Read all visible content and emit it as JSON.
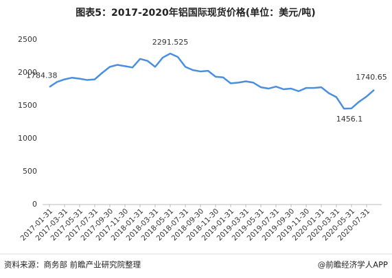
{
  "chart_data": {
    "type": "line",
    "title": "图表5：2017-2020年铝国际现货价格(单位：美元/吨)",
    "categories": [
      "2017-01-31",
      null,
      "2017-03-31",
      null,
      "2017-05-31",
      null,
      "2017-07-31",
      null,
      "2017-09-30",
      null,
      "2017-11-30",
      null,
      "2018-01-31",
      null,
      "2018-03-31",
      null,
      "2018-05-31",
      null,
      "2018-07-31",
      null,
      "2018-09-30",
      null,
      "2018-11-30",
      null,
      "2019-01-31",
      null,
      "2019-03-31",
      null,
      "2019-05-31",
      null,
      "2019-07-31",
      null,
      "2019-09-30",
      null,
      "2019-11-30",
      null,
      "2020-01-31",
      null,
      "2020-03-31",
      null,
      "2020-05-31",
      null,
      "2020-07-31",
      null
    ],
    "values": [
      1784.38,
      1860,
      1900,
      1925,
      1910,
      1890,
      1900,
      2000,
      2090,
      2120,
      2100,
      2080,
      2210,
      2180,
      2090,
      2230,
      2291.525,
      2240,
      2090,
      2040,
      2020,
      2030,
      1940,
      1930,
      1840,
      1850,
      1870,
      1850,
      1780,
      1760,
      1790,
      1750,
      1760,
      1720,
      1770,
      1770,
      1780,
      1690,
      1630,
      1456.1,
      1460,
      1560,
      1640,
      1740.65
    ],
    "value_labels": [
      "1784.38",
      null,
      null,
      null,
      null,
      null,
      null,
      null,
      null,
      null,
      null,
      null,
      null,
      null,
      null,
      null,
      "2291.525",
      null,
      null,
      null,
      null,
      null,
      null,
      null,
      null,
      null,
      null,
      null,
      null,
      null,
      null,
      null,
      null,
      null,
      null,
      null,
      null,
      null,
      null,
      "1456.1",
      null,
      null,
      null,
      "1740.65"
    ],
    "color": "#4a8ee0",
    "ylim": [
      0,
      2500
    ],
    "yticks": [
      0,
      500,
      1000,
      1500,
      2000,
      2500
    ],
    "grid": false,
    "source": "资料来源：商务部 前瞻产业研究院整理",
    "credit": "@前瞻经济学人APP"
  }
}
